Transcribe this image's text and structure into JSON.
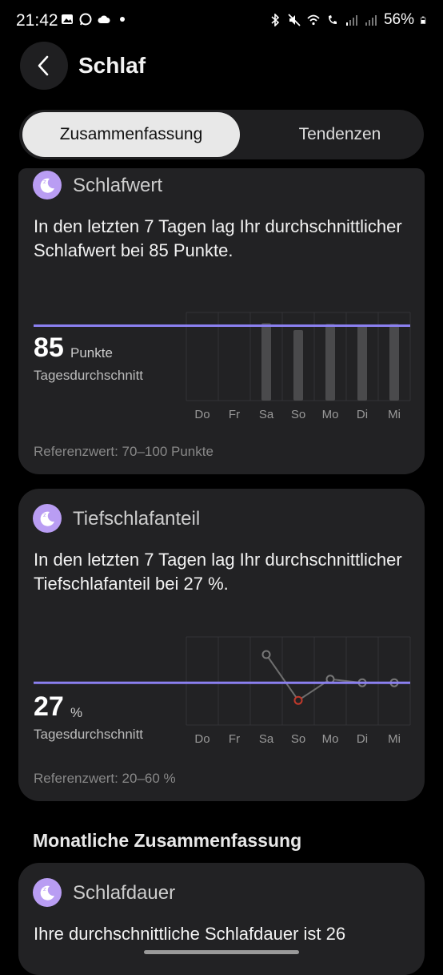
{
  "status": {
    "time": "21:42",
    "battery": "56%"
  },
  "header": {
    "title": "Schlaf"
  },
  "tabs": [
    {
      "label": "Zusammenfassung",
      "active": true
    },
    {
      "label": "Tendenzen",
      "active": false
    }
  ],
  "sleep_score": {
    "title": "Schlafwert",
    "description": "In den letzten 7 Tagen lag Ihr durchschnittlicher Schlafwert bei 85 Punkte.",
    "value": "85",
    "unit": "Punkte",
    "avg_label": "Tagesdurchschnitt",
    "reference": "Referenzwert: 70–100 Punkte"
  },
  "deep_sleep": {
    "title": "Tiefschlafanteil",
    "description": "In den letzten 7 Tagen lag Ihr durchschnittlicher Tiefschlafanteil bei 27 %.",
    "value": "27",
    "unit": "%",
    "avg_label": "Tagesdurchschnitt",
    "reference": "Referenzwert: 20–60 %"
  },
  "monthly": {
    "section_title": "Monatliche Zusammenfassung",
    "title": "Schlafdauer",
    "description": "Ihre durchschnittliche Schlafdauer ist 26"
  },
  "chart_data": [
    {
      "type": "bar",
      "categories": [
        "Do",
        "Fr",
        "Sa",
        "So",
        "Mo",
        "Di",
        "Mi"
      ],
      "values": [
        null,
        null,
        88,
        80,
        87,
        86,
        87
      ],
      "average": 85,
      "ylim": [
        0,
        100
      ],
      "colors": {
        "bar": "#4a4a4c",
        "average_line": "#8b80f0"
      }
    },
    {
      "type": "line",
      "categories": [
        "Do",
        "Fr",
        "Sa",
        "So",
        "Mo",
        "Di",
        "Mi"
      ],
      "values": [
        null,
        null,
        35,
        22,
        28,
        27,
        27
      ],
      "average": 27,
      "ylim": [
        15,
        40
      ],
      "low_point_color": "#c0392b",
      "colors": {
        "line": "#6e6e6e",
        "average_line": "#8b80f0"
      }
    }
  ]
}
